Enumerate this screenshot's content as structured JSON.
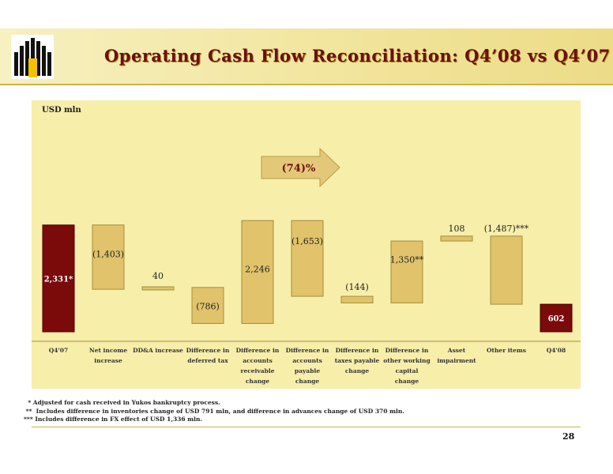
{
  "header": {
    "title": "Operating Cash Flow Reconciliation: Q4’08 vs Q4’07"
  },
  "page_number": "28",
  "colors": {
    "gold": "#e0c36a",
    "gold_edge": "#a58d3c",
    "maroon": "#7b0a0a",
    "panel": "#f7eeaa",
    "title": "#6e0f0f"
  },
  "change_arrow": {
    "text": "(74)%"
  },
  "footnotes": [
    "  * Adjusted for cash received in Yukos bankruptcy process.",
    " **  Includes difference in inventories change of USD 791 mln, and difference in advances change of USD 370 mln.",
    "*** Includes difference in FX effect of USD 1,336 mln."
  ],
  "chart_data": {
    "type": "bar",
    "subtype": "waterfall",
    "ylabel": "USD mln",
    "categories": [
      [
        "Q4'07"
      ],
      [
        "Net income",
        "increase"
      ],
      [
        "DD&A increase"
      ],
      [
        "Difference in",
        "deferred tax"
      ],
      [
        "Difference in",
        "accounts",
        "receivable",
        "change"
      ],
      [
        "Difference in",
        "accounts",
        "payable",
        "change"
      ],
      [
        "Difference in",
        "taxes payable",
        "change"
      ],
      [
        "Difference in",
        "other working",
        "capital",
        "change"
      ],
      [
        "Asset",
        "impairment"
      ],
      [
        "Other items"
      ],
      [
        "Q4'08"
      ]
    ],
    "values": [
      2331,
      -1403,
      40,
      -786,
      2246,
      -1653,
      -144,
      1350,
      108,
      -1487,
      602
    ],
    "labels": [
      "2,331*",
      "(1,403)",
      "40",
      "(786)",
      "2,246",
      "(1,653)",
      "(144)",
      "1,350**",
      "108",
      "(1,487)***",
      "602"
    ],
    "kinds": [
      "total",
      "delta",
      "delta",
      "delta",
      "delta",
      "delta",
      "delta",
      "delta",
      "delta",
      "delta",
      "total"
    ]
  }
}
